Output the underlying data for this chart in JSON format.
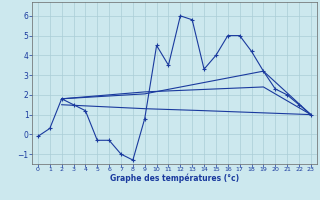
{
  "background_color": "#cce8ee",
  "grid_color": "#aacdd6",
  "line_color": "#1a3a9e",
  "title": "Graphe des températures (°c)",
  "xlim": [
    -0.5,
    23.5
  ],
  "ylim": [
    -1.5,
    6.7
  ],
  "yticks": [
    -1,
    0,
    1,
    2,
    3,
    4,
    5,
    6
  ],
  "xticks": [
    0,
    1,
    2,
    3,
    4,
    5,
    6,
    7,
    8,
    9,
    10,
    11,
    12,
    13,
    14,
    15,
    16,
    17,
    18,
    19,
    20,
    21,
    22,
    23
  ],
  "series_main_x": [
    0,
    1,
    2,
    3,
    4,
    5,
    6,
    7,
    8,
    9,
    10,
    11,
    12,
    13,
    14,
    15,
    16,
    17,
    18,
    19,
    20,
    21,
    22,
    23
  ],
  "series_main_y": [
    -0.1,
    0.3,
    1.8,
    1.5,
    1.2,
    -0.3,
    -0.3,
    -1.0,
    -1.3,
    0.8,
    4.5,
    3.5,
    6.0,
    5.8,
    3.3,
    4.0,
    5.0,
    5.0,
    4.2,
    3.2,
    2.3,
    2.0,
    1.5,
    1.0
  ],
  "line1_x": [
    2,
    9,
    19,
    23
  ],
  "line1_y": [
    1.8,
    2.05,
    3.2,
    1.0
  ],
  "line2_x": [
    2,
    9,
    19,
    23
  ],
  "line2_y": [
    1.8,
    2.15,
    2.4,
    1.0
  ],
  "line3_x": [
    2,
    9,
    14,
    23
  ],
  "line3_y": [
    1.5,
    1.3,
    1.2,
    1.0
  ]
}
